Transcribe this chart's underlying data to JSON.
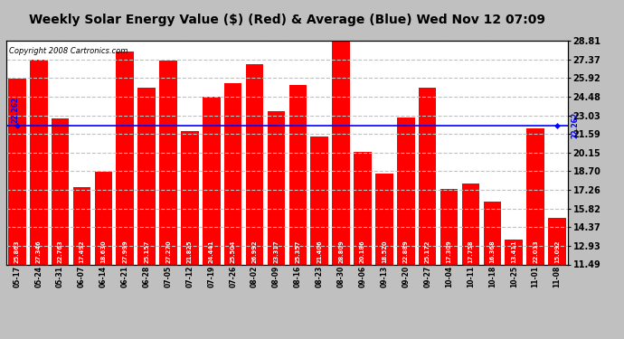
{
  "title": "Weekly Solar Energy Value ($) (Red) & Average (Blue) Wed Nov 12 07:09",
  "copyright": "Copyright 2008 Cartronics.com",
  "categories": [
    "05-17",
    "05-24",
    "05-31",
    "06-07",
    "06-14",
    "06-21",
    "06-28",
    "07-05",
    "07-12",
    "07-19",
    "07-26",
    "08-02",
    "08-09",
    "08-16",
    "08-23",
    "08-30",
    "09-06",
    "09-13",
    "09-20",
    "09-27",
    "10-04",
    "10-11",
    "10-18",
    "10-25",
    "11-01",
    "11-08"
  ],
  "values": [
    25.863,
    27.346,
    22.763,
    17.492,
    18.63,
    27.999,
    25.157,
    27.27,
    21.825,
    24.441,
    25.504,
    26.992,
    23.317,
    25.357,
    21.406,
    28.809,
    20.186,
    18.52,
    22.889,
    25.172,
    17.309,
    17.758,
    16.368,
    13.411,
    22.033,
    15.092
  ],
  "average": 22.262,
  "bar_color": "#ff0000",
  "avg_line_color": "#0000ff",
  "background_color": "#c0c0c0",
  "plot_bg_color": "#ffffff",
  "grid_color": "#c0c0c0",
  "title_color": "#000000",
  "ymin": 11.49,
  "ymax": 28.81,
  "yticks": [
    11.49,
    12.93,
    14.37,
    15.82,
    17.26,
    18.7,
    20.15,
    21.59,
    23.03,
    24.48,
    25.92,
    27.37,
    28.81
  ],
  "title_fontsize": 10,
  "label_fontsize": 5.5,
  "tick_fontsize": 7,
  "copyright_fontsize": 6
}
